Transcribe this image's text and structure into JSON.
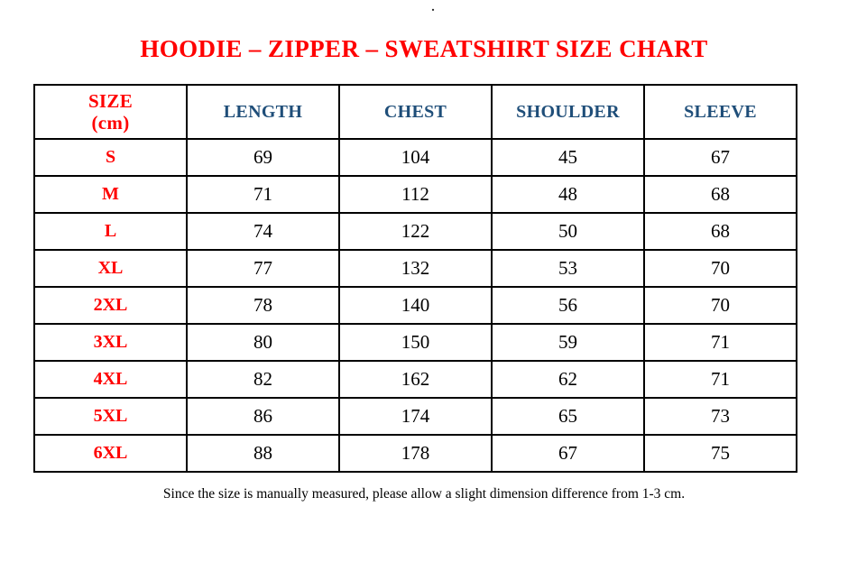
{
  "page": {
    "stray_dot": ".",
    "title": "HOODIE – ZIPPER – SWEATSHIRT SIZE CHART",
    "footnote": "Since the size is manually measured, please allow a slight dimension difference from 1-3 cm."
  },
  "colors": {
    "title_red": "#FF0000",
    "size_label_red": "#FF0000",
    "header_blue": "#1F4E79",
    "text_black": "#000000",
    "border_black": "#000000",
    "background": "#FFFFFF"
  },
  "chart_data": {
    "type": "table",
    "title": "HOODIE – ZIPPER – SWEATSHIRT SIZE CHART",
    "unit": "cm",
    "columns": [
      "SIZE\n(cm)",
      "LENGTH",
      "CHEST",
      "SHOULDER",
      "SLEEVE"
    ],
    "rows": [
      {
        "size": "S",
        "length": "69",
        "chest": "104",
        "shoulder": "45",
        "sleeve": "67"
      },
      {
        "size": "M",
        "length": "71",
        "chest": "112",
        "shoulder": "48",
        "sleeve": "68"
      },
      {
        "size": "L",
        "length": "74",
        "chest": "122",
        "shoulder": "50",
        "sleeve": "68"
      },
      {
        "size": "XL",
        "length": "77",
        "chest": "132",
        "shoulder": "53",
        "sleeve": "70"
      },
      {
        "size": "2XL",
        "length": "78",
        "chest": "140",
        "shoulder": "56",
        "sleeve": "70"
      },
      {
        "size": "3XL",
        "length": "80",
        "chest": "150",
        "shoulder": "59",
        "sleeve": "71"
      },
      {
        "size": "4XL",
        "length": "82",
        "chest": "162",
        "shoulder": "62",
        "sleeve": "71"
      },
      {
        "size": "5XL",
        "length": "86",
        "chest": "174",
        "shoulder": "65",
        "sleeve": "73"
      },
      {
        "size": "6XL",
        "length": "88",
        "chest": "178",
        "shoulder": "67",
        "sleeve": "75"
      }
    ],
    "note": "Since the size is manually measured, please allow a slight dimension difference from 1-3 cm."
  }
}
